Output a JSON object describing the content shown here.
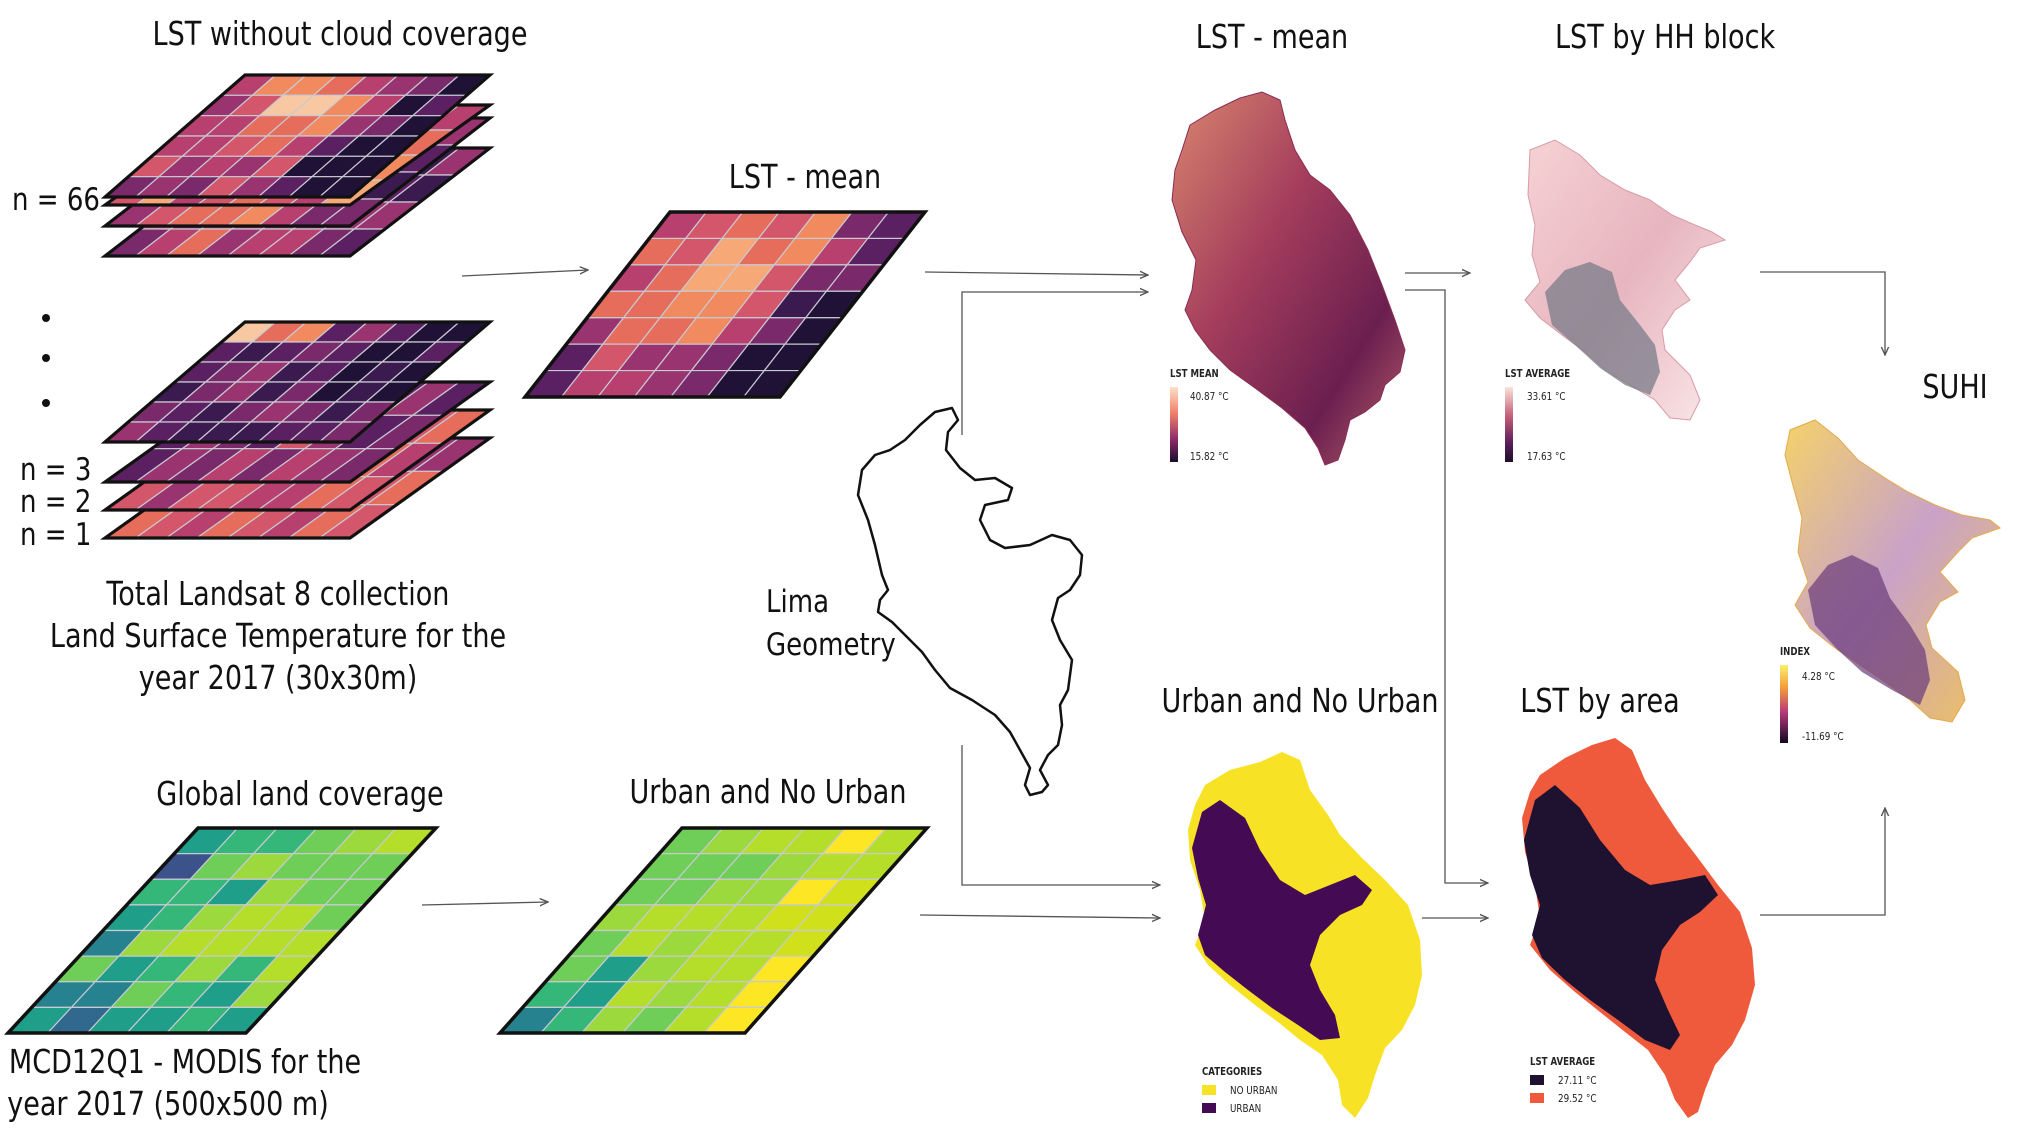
{
  "left": {
    "lst_title": "LST without cloud coverage",
    "n_top": "n = 66",
    "n_labels": [
      "n = 3",
      "n = 2",
      "n = 1"
    ],
    "caption_lines": [
      "Total Landsat 8 collection",
      "Land Surface Temperature for the",
      "year 2017 (30x30m)"
    ],
    "mean_title": "LST - mean",
    "glc_title": "Global land coverage",
    "urban_title": "Urban and No Urban",
    "modis_lines": [
      "MCD12Q1 - MODIS for the",
      "year 2017 (500x500 m)"
    ]
  },
  "center": {
    "geometry_lines": [
      "Lima",
      "Geometry"
    ]
  },
  "maps": {
    "lst_mean": {
      "title": "LST - mean",
      "legend_title": "LST MEAN",
      "max": "40.87 °C",
      "min": "15.82 °C"
    },
    "lst_hh": {
      "title": "LST by HH block",
      "legend_title": "LST AVERAGE",
      "max": "33.61 °C",
      "min": "17.63 °C"
    },
    "urban": {
      "title": "Urban and No Urban",
      "legend_title": "CATEGORIES",
      "items": [
        {
          "label": "NO URBAN",
          "color": "#f7e225"
        },
        {
          "label": "URBAN",
          "color": "#440a53"
        }
      ]
    },
    "lst_area": {
      "title": "LST by area",
      "legend_title": "LST AVERAGE",
      "items": [
        {
          "label": "27.11 °C",
          "color": "#1e1230"
        },
        {
          "label": "29.52 °C",
          "color": "#ef5a3c"
        }
      ]
    },
    "suhi": {
      "title": "SUHI",
      "legend_title": "INDEX",
      "max": "4.28 °C",
      "min": "-11.69 °C"
    }
  },
  "colors": {
    "magma_low": "#1b0f2e",
    "magma_mid": "#a8336c",
    "magma_high": "#f7d9c4",
    "viridis_low": "#3b528b",
    "viridis_mid": "#35b779",
    "viridis_high": "#fde725"
  }
}
